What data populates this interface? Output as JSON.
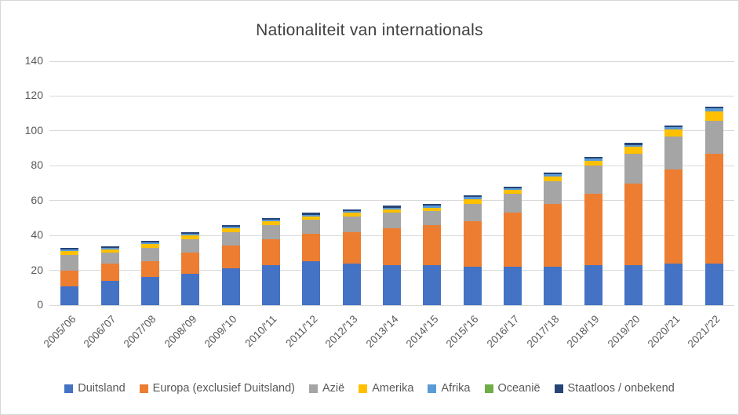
{
  "chart": {
    "title": "Nationaliteit van internationals",
    "title_color": "#404040",
    "axis_text_color": "#595959",
    "gridline_color": "#d9d9d9",
    "background": "#ffffff"
  },
  "chart_data": {
    "type": "bar",
    "stacked": true,
    "title": "Nationaliteit van internationals",
    "xlabel": "",
    "ylabel": "",
    "ylim": [
      0,
      140
    ],
    "yticks": [
      0,
      20,
      40,
      60,
      80,
      100,
      120,
      140
    ],
    "grid": true,
    "legend_position": "bottom",
    "categories": [
      "2005/'06",
      "2006/'07",
      "2007/'08",
      "2008/'09",
      "2009/'10",
      "2010/'11",
      "2011/'12",
      "2012/'13",
      "2013/'14",
      "2014/'15",
      "2015/'16",
      "2016/'17",
      "2017/'18",
      "2018/'19",
      "2019/'20",
      "2020/'21",
      "2021/'22"
    ],
    "series": [
      {
        "name": "Duitsland",
        "color": "#4472C4",
        "values": [
          11,
          14,
          16,
          18,
          21,
          23,
          25,
          24,
          23,
          23,
          22,
          22,
          22,
          23,
          23,
          24,
          24
        ]
      },
      {
        "name": "Europa (exclusief Duitsland)",
        "color": "#ED7D31",
        "values": [
          9,
          10,
          9,
          12,
          13,
          15,
          16,
          18,
          21,
          23,
          26,
          31,
          36,
          41,
          47,
          54,
          63
        ]
      },
      {
        "name": "Azië",
        "color": "#A5A5A5",
        "values": [
          9,
          6,
          8,
          8,
          8,
          8,
          8,
          9,
          9,
          8,
          10,
          11,
          13,
          16,
          17,
          19,
          19
        ]
      },
      {
        "name": "Amerika",
        "color": "#FFC000",
        "values": [
          2,
          2,
          2,
          2,
          2,
          2,
          2,
          2,
          2,
          2,
          3,
          2,
          3,
          3,
          4,
          4,
          5
        ]
      },
      {
        "name": "Afrika",
        "color": "#5B9BD5",
        "values": [
          1,
          1,
          1,
          1,
          1,
          1,
          1,
          1,
          1,
          1,
          1,
          1,
          1,
          1,
          1,
          1,
          2
        ]
      },
      {
        "name": "Oceanië",
        "color": "#70AD47",
        "values": [
          0,
          0,
          0,
          0,
          0,
          0,
          0,
          0,
          0,
          0,
          0,
          0,
          0,
          0,
          0,
          0,
          0
        ]
      },
      {
        "name": "Staatloos / onbekend",
        "color": "#264478",
        "values": [
          1,
          1,
          1,
          1,
          1,
          1,
          1,
          1,
          1,
          1,
          1,
          1,
          1,
          1,
          1,
          1,
          1
        ]
      }
    ]
  }
}
